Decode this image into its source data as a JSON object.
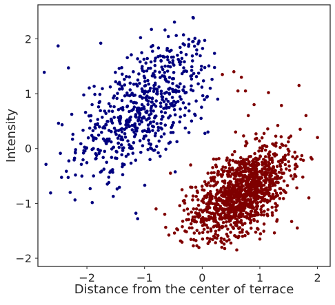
{
  "chart_data": {
    "type": "scatter",
    "title": "",
    "xlabel": "Distance from the center of terrace",
    "ylabel": "Intensity",
    "xlim": [
      -2.85,
      2.22
    ],
    "ylim": [
      -2.15,
      2.62
    ],
    "x_ticks": [
      -2,
      -1,
      0,
      1,
      2
    ],
    "y_ticks": [
      -2,
      -1,
      0,
      1,
      2
    ],
    "x_tick_labels": [
      "−2",
      "−1",
      "0",
      "1",
      "2"
    ],
    "y_tick_labels": [
      "−2",
      "−1",
      "0",
      "1",
      "2"
    ],
    "grid": false,
    "legend": "none",
    "series": [
      {
        "color": "#00007f",
        "distribution": {
          "n": 600,
          "mean_x": -1.0,
          "mean_y": 0.75,
          "sd_x": 0.58,
          "sd_y": 0.62,
          "corr": 0.55,
          "x_range": [
            -2.75,
            0.3
          ],
          "y_range": [
            -1.3,
            2.4
          ]
        },
        "points": [
          [
            -1.1,
            1.36
          ],
          [
            -1.35,
            1.26
          ],
          [
            -0.73,
            -0.14
          ],
          [
            -1.3,
            0.52
          ],
          [
            -1.12,
            0.67
          ],
          [
            -0.56,
            1.1
          ],
          [
            0.17,
            1.26
          ],
          [
            0.1,
            0.3
          ],
          [
            -2.32,
            1.47
          ],
          [
            -2.29,
            -0.8
          ],
          [
            -2.2,
            -0.08
          ],
          [
            -1.44,
            1.46
          ],
          [
            -2.5,
            1.87
          ],
          [
            -2.63,
            -0.81
          ],
          [
            -2.71,
            -0.29
          ],
          [
            -0.16,
            2.39
          ],
          [
            -0.45,
            2.06
          ],
          [
            -0.18,
            1.49
          ],
          [
            -1.76,
            1.92
          ],
          [
            -1.84,
            -0.18
          ],
          [
            -0.38,
            0.72
          ],
          [
            -1.12,
            -1.28
          ],
          [
            -0.02,
            0.55
          ],
          [
            0.27,
            0.9
          ],
          [
            -1.62,
            -0.62
          ],
          [
            -1.91,
            0.8
          ],
          [
            -2.74,
            1.39
          ],
          [
            -1.15,
            -1.18
          ],
          [
            -0.88,
            2.17
          ],
          [
            -0.33,
            1.91
          ]
        ]
      },
      {
        "color": "#7f0000",
        "distribution": {
          "n": 1200,
          "mean_x": 0.68,
          "mean_y": -0.8,
          "sd_x": 0.42,
          "sd_y": 0.42,
          "corr": 0.55,
          "x_range": [
            -0.95,
            2.0
          ],
          "y_range": [
            -1.88,
            1.35
          ]
        },
        "points": [
          [
            0.68,
            1.3
          ],
          [
            0.75,
            1.05
          ],
          [
            1.15,
            1.02
          ],
          [
            1.68,
            1.15
          ],
          [
            1.8,
            0.6
          ],
          [
            2.0,
            0.2
          ],
          [
            1.85,
            -0.9
          ],
          [
            1.65,
            -1.45
          ],
          [
            0.62,
            1.05
          ],
          [
            0.35,
            1.35
          ],
          [
            0.55,
            1.4
          ],
          [
            1.57,
            -0.15
          ],
          [
            0.58,
            0.3
          ],
          [
            0.9,
            0.8
          ],
          [
            0.8,
            0.6
          ],
          [
            1.7,
            0.35
          ],
          [
            1.45,
            0.05
          ],
          [
            1.15,
            -0.1
          ],
          [
            -0.55,
            -0.45
          ],
          [
            -0.35,
            -0.75
          ],
          [
            -0.15,
            -1.1
          ],
          [
            -0.8,
            -1.1
          ],
          [
            -0.65,
            -1.2
          ],
          [
            0.2,
            -1.6
          ],
          [
            0.6,
            -1.85
          ],
          [
            1.0,
            -1.65
          ],
          [
            1.3,
            -1.3
          ],
          [
            0.7,
            -1.6
          ],
          [
            -0.2,
            -0.3
          ],
          [
            0.1,
            -0.45
          ]
        ]
      }
    ]
  }
}
